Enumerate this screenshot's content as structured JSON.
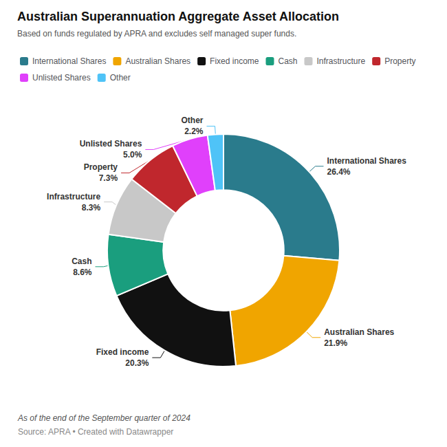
{
  "chart_data": {
    "type": "pie",
    "title": "Australian Superannuation Aggregate Asset Allocation",
    "subtitle": "Based on funds regulated by APRA and excludes self managed super funds.",
    "annotations": [
      "As of the end of the September quarter of 2024",
      "Source: APRA • Created with Datawrapper"
    ],
    "categories": [
      "International Shares",
      "Australian Shares",
      "Fixed income",
      "Cash",
      "Infrastructure",
      "Property",
      "Unlisted Shares",
      "Other"
    ],
    "values": [
      26.4,
      21.9,
      20.3,
      8.6,
      8.3,
      7.3,
      5.0,
      2.2
    ],
    "value_labels": [
      "26.4%",
      "21.9%",
      "20.3%",
      "8.6%",
      "8.3%",
      "7.3%",
      "5.0%",
      "2.2%"
    ],
    "colors": [
      "#2a7b8c",
      "#f0a500",
      "#111111",
      "#1a9e7e",
      "#c8c8c8",
      "#c0272d",
      "#e040fb",
      "#4fc3f7"
    ],
    "legend": "upper left",
    "data_labels": true
  }
}
